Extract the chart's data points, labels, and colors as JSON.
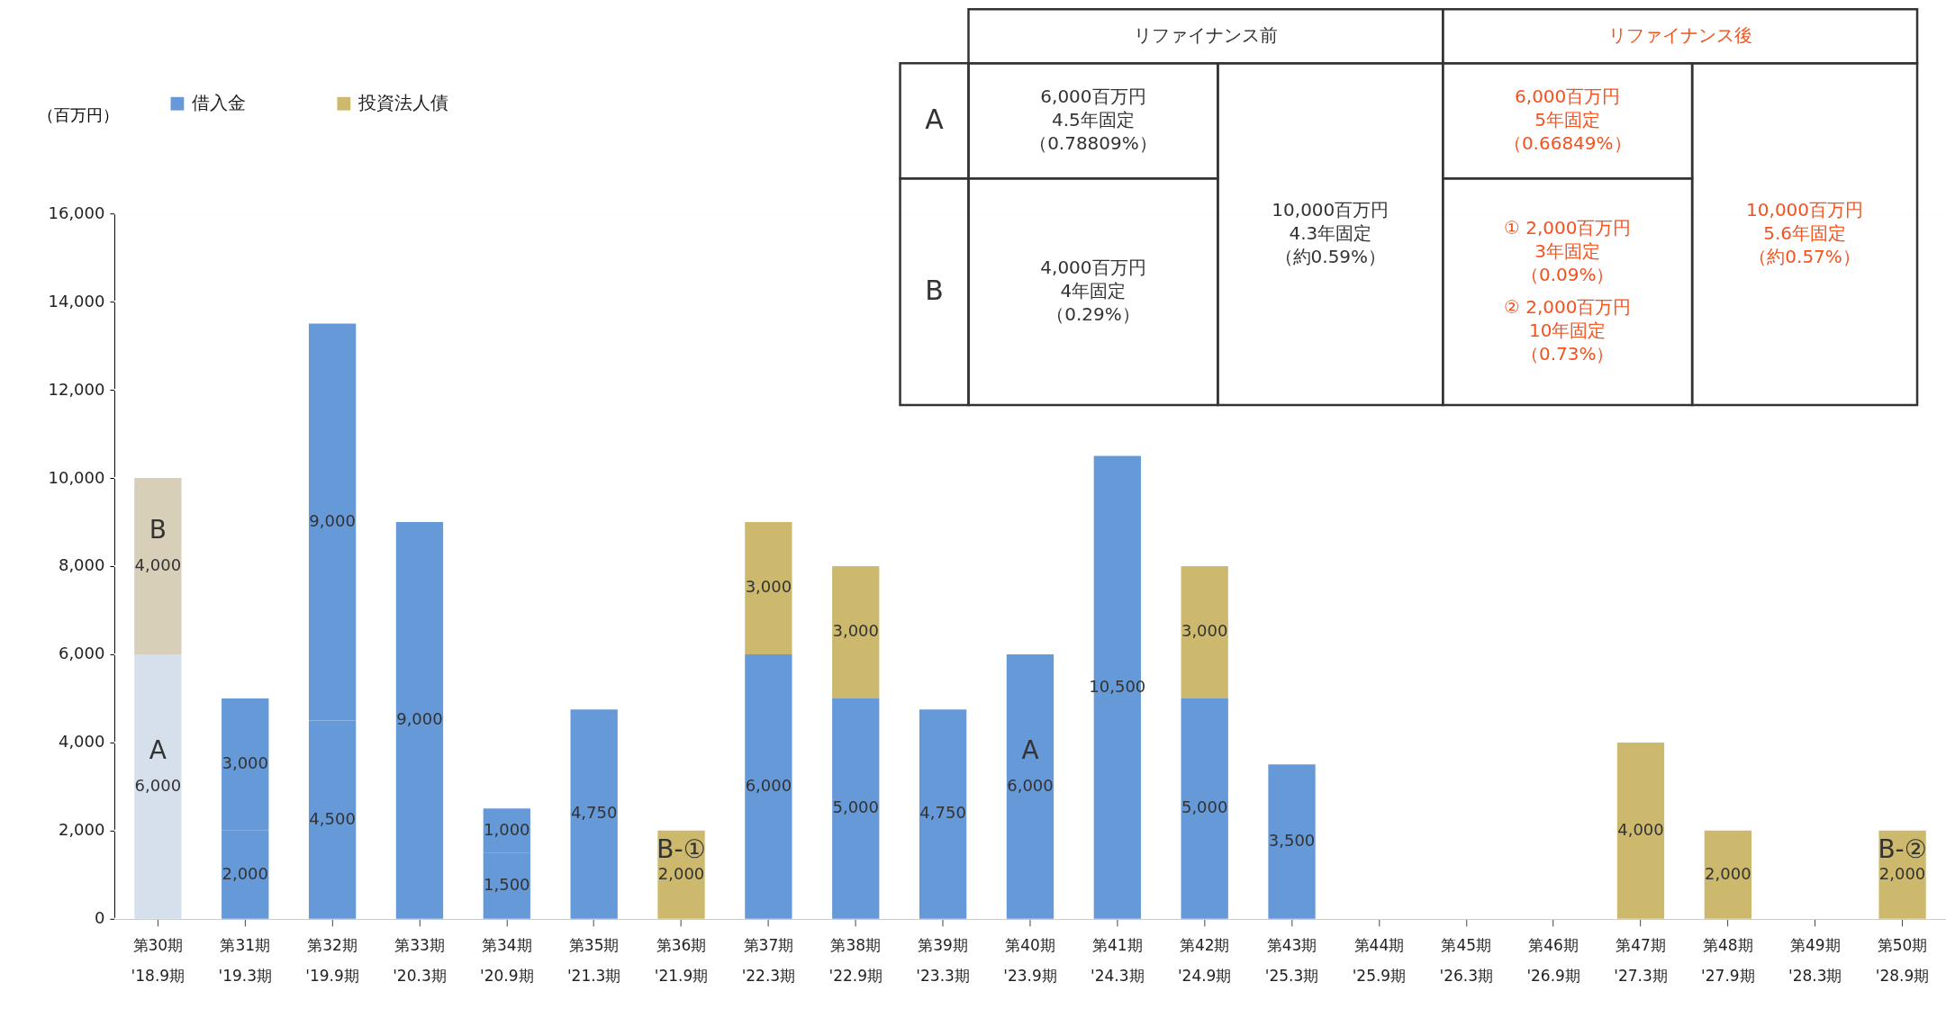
{
  "chart_data": {
    "type": "bar",
    "stacked": true,
    "ylabel": "（百万円）",
    "categories": [
      "第30期\n'18.9期",
      "第31期\n'19.3期",
      "第32期\n'19.9期",
      "第33期\n'20.3期",
      "第34期\n'20.9期",
      "第35期\n'21.3期",
      "第36期\n'21.9期",
      "第37期\n'22.3期",
      "第38期\n'22.9期",
      "第39期\n'23.3期",
      "第40期\n'23.9期",
      "第41期\n'24.3期",
      "第42期\n'24.9期",
      "第43期\n'25.3期",
      "第44期\n'25.9期",
      "第45期\n'26.3期",
      "第46期\n'26.9期",
      "第47期\n'27.3期",
      "第48期\n'27.9期",
      "第49期\n'28.3期",
      "第50期\n'28.9期"
    ],
    "series": [
      {
        "name": "借入金",
        "color": "#6699d8",
        "colors": [
          "#d5e0ec",
          "#6699d8",
          "#6699d8",
          "#6699d8",
          "#6699d8",
          "#6699d8",
          "#6699d8",
          "#6699d8",
          "#6699d8",
          "#6699d8",
          "#6699d8",
          "#6699d8",
          "#6699d8",
          "#6699d8",
          "#6699d8",
          "#6699d8",
          "#6699d8",
          "#6699d8",
          "#6699d8",
          "#6699d8",
          "#6699d8"
        ],
        "values": [
          6000,
          2000,
          4500,
          9000,
          1500,
          4750,
          null,
          6000,
          5000,
          4750,
          6000,
          10500,
          5000,
          3500,
          null,
          null,
          null,
          null,
          null,
          null,
          null
        ],
        "value_labels": [
          "6,000",
          "2,000",
          "4,500",
          "9,000",
          "1,500",
          "4,750",
          null,
          "6,000",
          "5,000",
          "4,750",
          "6,000",
          "10,500",
          "5,000",
          "3,500",
          null,
          null,
          null,
          null,
          null,
          null,
          null
        ]
      },
      {
        "colors": [
          "#d8cfb8",
          "#6699d8",
          "#6699d8",
          "#6699d8",
          "#6699d8",
          "#6699d8",
          "#6699d8",
          "#6699d8",
          "#6699d8",
          "#6699d8",
          "#6699d8",
          "#6699d8",
          "#6699d8",
          "#6699d8",
          "#6699d8",
          "#6699d8",
          "#6699d8",
          "#6699d8",
          "#6699d8",
          "#6699d8",
          "#6699d8"
        ],
        "values": [
          4000,
          3000,
          9000,
          null,
          1000,
          null,
          null,
          null,
          null,
          null,
          null,
          null,
          null,
          null,
          null,
          null,
          null,
          null,
          null,
          null,
          null
        ],
        "value_labels": [
          "4,000",
          "3,000",
          "9,000",
          null,
          "1,000",
          null,
          null,
          null,
          null,
          null,
          null,
          null,
          null,
          null,
          null,
          null,
          null,
          null,
          null,
          null,
          null
        ]
      },
      {
        "name": "投資法人債",
        "color": "#ccb96e",
        "values": [
          null,
          null,
          null,
          null,
          null,
          null,
          2000,
          3000,
          3000,
          null,
          null,
          null,
          3000,
          null,
          null,
          null,
          null,
          4000,
          2000,
          null,
          2000
        ],
        "value_labels": [
          null,
          null,
          null,
          null,
          null,
          null,
          "2,000",
          "3,000",
          "3,000",
          null,
          null,
          null,
          "3,000",
          null,
          null,
          null,
          null,
          "4,000",
          "2,000",
          null,
          "2,000"
        ]
      }
    ],
    "ylim": [
      0,
      16000
    ],
    "yticks": [
      0,
      {
        "value": 2000,
        "label": "2,000"
      },
      {
        "value": 4000,
        "label": "4,000"
      },
      {
        "value": 6000,
        "label": "6,000"
      },
      {
        "value": 8000,
        "label": "8,000"
      },
      {
        "value": 10000,
        "label": "10,000"
      },
      {
        "value": 12000,
        "label": "12,000"
      },
      {
        "value": 14000,
        "label": "14,000"
      },
      {
        "value": 16000,
        "label": "16,000"
      }
    ],
    "grid": "y",
    "legend": "top left",
    "annotations": [
      "A",
      "B",
      "B-①",
      "A",
      "B-②",
      "リファイナンス前",
      "リファイナンス後",
      "A",
      "B",
      "6,000百万円",
      "4.5年固定",
      "（0.78809%）",
      "4,000百万円",
      "4年固定",
      "（0.29%）",
      "10,000百万円",
      "4.3年固定",
      "（約0.59%）",
      "6,000百万円",
      "5年固定",
      "（0.66849%）",
      "① 2,000百万円",
      "3年固定",
      "（0.09%）",
      "② 2,000百万円",
      "10年固定",
      "（0.73%）",
      "10,000百万円",
      "5.6年固定",
      "（約0.57%）"
    ]
  }
}
